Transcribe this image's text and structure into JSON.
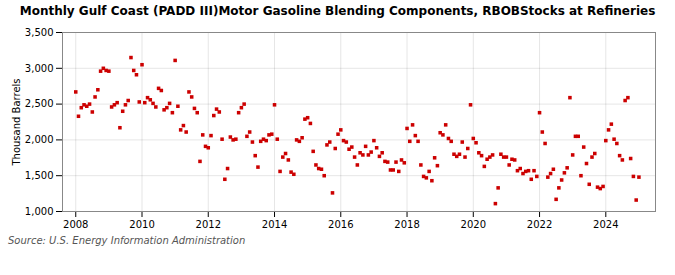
{
  "chart_data": {
    "type": "scatter",
    "title": "Monthly Gulf Coast (PADD III)Motor Gasoline Blending Components, RBOBStocks at Refineries",
    "ylabel": "Thousand Barrels",
    "annotations": [
      "Source: U.S. Energy Information Administration"
    ],
    "color": "#cc0000",
    "marker": "square",
    "grid": true,
    "xlim": [
      2007.6,
      2025.5
    ],
    "xticks": [
      2008,
      2010,
      2012,
      2014,
      2016,
      2018,
      2020,
      2022,
      2024
    ],
    "ylim": [
      1000,
      3500
    ],
    "yticks": [
      {
        "value": 1000,
        "label": "1,000"
      },
      {
        "value": 1500,
        "label": "1,500"
      },
      {
        "value": 2000,
        "label": "2,000"
      },
      {
        "value": 2500,
        "label": "2,500"
      },
      {
        "value": 3000,
        "label": "3,000"
      },
      {
        "value": 3500,
        "label": "3,500"
      }
    ],
    "x": [
      2008.0,
      2008.083,
      2008.167,
      2008.25,
      2008.333,
      2008.417,
      2008.5,
      2008.583,
      2008.667,
      2008.75,
      2008.833,
      2008.917,
      2009.0,
      2009.083,
      2009.167,
      2009.25,
      2009.333,
      2009.417,
      2009.5,
      2009.583,
      2009.667,
      2009.75,
      2009.833,
      2009.917,
      2010.0,
      2010.083,
      2010.167,
      2010.25,
      2010.333,
      2010.417,
      2010.5,
      2010.583,
      2010.667,
      2010.75,
      2010.833,
      2010.917,
      2011.0,
      2011.083,
      2011.167,
      2011.25,
      2011.333,
      2011.417,
      2011.5,
      2011.583,
      2011.667,
      2011.75,
      2011.833,
      2011.917,
      2012.0,
      2012.083,
      2012.167,
      2012.25,
      2012.333,
      2012.417,
      2012.5,
      2012.583,
      2012.667,
      2012.75,
      2012.833,
      2012.917,
      2013.0,
      2013.083,
      2013.167,
      2013.25,
      2013.333,
      2013.417,
      2013.5,
      2013.583,
      2013.667,
      2013.75,
      2013.833,
      2013.917,
      2014.0,
      2014.083,
      2014.167,
      2014.25,
      2014.333,
      2014.417,
      2014.5,
      2014.583,
      2014.667,
      2014.75,
      2014.833,
      2014.917,
      2015.0,
      2015.083,
      2015.167,
      2015.25,
      2015.333,
      2015.417,
      2015.5,
      2015.583,
      2015.667,
      2015.75,
      2015.833,
      2015.917,
      2016.0,
      2016.083,
      2016.167,
      2016.25,
      2016.333,
      2016.417,
      2016.5,
      2016.583,
      2016.667,
      2016.75,
      2016.833,
      2016.917,
      2017.0,
      2017.083,
      2017.167,
      2017.25,
      2017.333,
      2017.417,
      2017.5,
      2017.583,
      2017.667,
      2017.75,
      2017.833,
      2017.917,
      2018.0,
      2018.083,
      2018.167,
      2018.25,
      2018.333,
      2018.417,
      2018.5,
      2018.583,
      2018.667,
      2018.75,
      2018.833,
      2018.917,
      2019.0,
      2019.083,
      2019.167,
      2019.25,
      2019.333,
      2019.417,
      2019.5,
      2019.583,
      2019.667,
      2019.75,
      2019.833,
      2019.917,
      2020.0,
      2020.083,
      2020.167,
      2020.25,
      2020.333,
      2020.417,
      2020.5,
      2020.583,
      2020.667,
      2020.75,
      2020.833,
      2020.917,
      2021.0,
      2021.083,
      2021.167,
      2021.25,
      2021.333,
      2021.417,
      2021.5,
      2021.583,
      2021.667,
      2021.75,
      2021.833,
      2021.917,
      2022.0,
      2022.083,
      2022.167,
      2022.25,
      2022.333,
      2022.417,
      2022.5,
      2022.583,
      2022.667,
      2022.75,
      2022.833,
      2022.917,
      2023.0,
      2023.083,
      2023.167,
      2023.25,
      2023.333,
      2023.417,
      2023.5,
      2023.583,
      2023.667,
      2023.75,
      2023.833,
      2023.917,
      2024.0,
      2024.083,
      2024.167,
      2024.25,
      2024.333,
      2024.417,
      2024.5,
      2024.583,
      2024.667,
      2024.75,
      2024.833,
      2024.917,
      2025.0
    ],
    "values": [
      2670,
      2330,
      2450,
      2490,
      2470,
      2500,
      2390,
      2600,
      2700,
      2960,
      3000,
      2970,
      2960,
      2460,
      2490,
      2520,
      2170,
      2400,
      2490,
      2550,
      3150,
      2970,
      2910,
      2530,
      3050,
      2520,
      2590,
      2560,
      2510,
      2460,
      2720,
      2690,
      2420,
      2450,
      2510,
      2380,
      3110,
      2470,
      2140,
      2200,
      2110,
      2670,
      2600,
      2440,
      2380,
      1700,
      2070,
      1910,
      1890,
      2060,
      2340,
      2430,
      2390,
      2010,
      1450,
      1600,
      2040,
      2000,
      2010,
      2380,
      2450,
      2500,
      2050,
      2110,
      1970,
      1780,
      1620,
      1980,
      2010,
      1990,
      2070,
      2080,
      2490,
      2010,
      1560,
      1760,
      1810,
      1720,
      1550,
      1520,
      2000,
      1980,
      2030,
      2290,
      2310,
      2230,
      1840,
      1650,
      1600,
      1590,
      1500,
      1930,
      1970,
      1260,
      1880,
      2080,
      2140,
      1990,
      1970,
      1870,
      1900,
      1760,
      1650,
      1820,
      1790,
      1910,
      1790,
      1830,
      1990,
      1890,
      1770,
      1820,
      1700,
      1690,
      1580,
      1580,
      1690,
      1560,
      1720,
      1680,
      2160,
      1980,
      2210,
      2060,
      1980,
      1650,
      1490,
      1470,
      1560,
      1430,
      1750,
      1640,
      2100,
      2070,
      2210,
      2020,
      1980,
      1800,
      1770,
      1800,
      1970,
      1760,
      1880,
      2490,
      2020,
      1960,
      1820,
      1780,
      1630,
      1730,
      1760,
      1790,
      1110,
      1330,
      1800,
      1760,
      1760,
      1650,
      1730,
      1720,
      1570,
      1600,
      1530,
      1560,
      1570,
      1450,
      1570,
      1490,
      2380,
      2110,
      1950,
      1480,
      1530,
      1590,
      1170,
      1330,
      1440,
      1540,
      1610,
      2590,
      1790,
      2050,
      2050,
      1500,
      1900,
      1670,
      1380,
      1760,
      1810,
      1340,
      1320,
      1350,
      1990,
      2140,
      2220,
      2010,
      1950,
      1780,
      1720,
      2550,
      2590,
      1740,
      1490,
      1160,
      1480
    ]
  }
}
